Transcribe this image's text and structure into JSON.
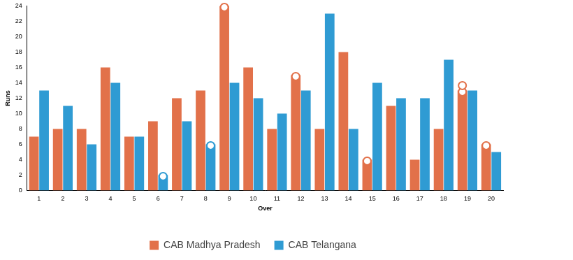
{
  "chart_data": {
    "type": "bar",
    "x_label": "Over",
    "y_label": "Runs",
    "categories": [
      "1",
      "2",
      "3",
      "4",
      "5",
      "6",
      "7",
      "8",
      "9",
      "10",
      "11",
      "12",
      "13",
      "14",
      "15",
      "16",
      "17",
      "18",
      "19",
      "20"
    ],
    "series": [
      {
        "name": "CAB Madhya Pradesh",
        "color": "#e2714a",
        "values": [
          7,
          8,
          8,
          16,
          7,
          9,
          12,
          13,
          24,
          16,
          8,
          15,
          8,
          18,
          4,
          11,
          4,
          8,
          13,
          6
        ],
        "wickets": [
          0,
          0,
          0,
          0,
          0,
          0,
          0,
          0,
          1,
          0,
          0,
          1,
          0,
          0,
          1,
          0,
          0,
          0,
          2,
          1
        ]
      },
      {
        "name": "CAB Telangana",
        "color": "#2f9bd3",
        "values": [
          13,
          11,
          6,
          14,
          7,
          2,
          9,
          6,
          14,
          12,
          10,
          13,
          23,
          8,
          14,
          12,
          12,
          17,
          13,
          5
        ],
        "wickets": [
          0,
          0,
          0,
          0,
          0,
          1,
          0,
          1,
          0,
          0,
          0,
          0,
          0,
          0,
          0,
          0,
          0,
          0,
          0,
          0
        ]
      }
    ],
    "ylim": [
      0,
      24
    ],
    "yticks": [
      0,
      2,
      4,
      6,
      8,
      10,
      12,
      14,
      16,
      18,
      20,
      22,
      24
    ],
    "grid": false,
    "legend": "bottom"
  }
}
